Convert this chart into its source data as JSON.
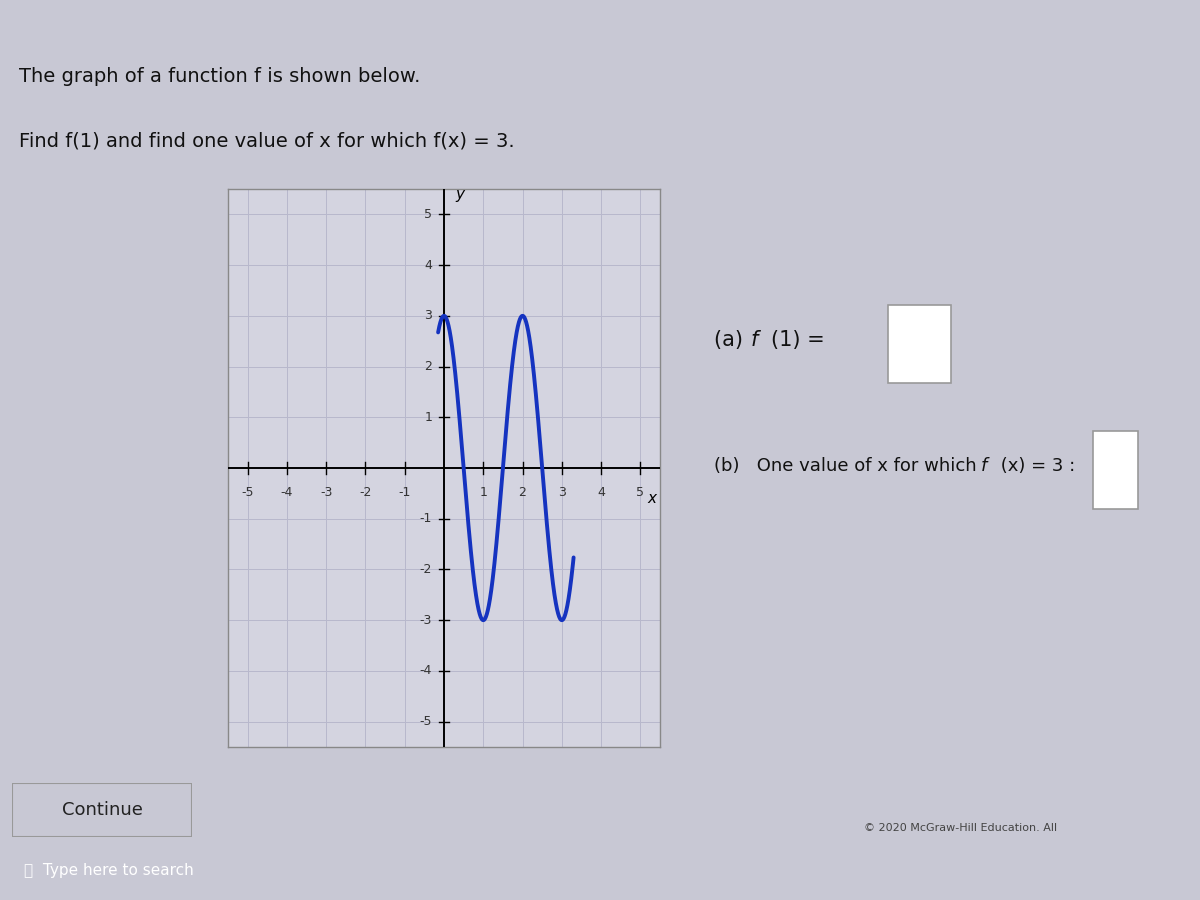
{
  "title_line1": "The graph of a function f is shown below.",
  "title_line2": "Find f(1) and find one value of x for which f(x) = 3.",
  "question_a_prefix": "(a)  ",
  "question_a_func": "f",
  "question_a_suffix": "(1) = ",
  "question_b": "(b)   One value of x for which f (x) = 3 : ",
  "xlim": [
    -5.5,
    5.5
  ],
  "ylim": [
    -5.5,
    5.5
  ],
  "xticks": [
    -5,
    -4,
    -3,
    -2,
    -1,
    1,
    2,
    3,
    4,
    5
  ],
  "yticks": [
    -5,
    -4,
    -3,
    -2,
    -1,
    1,
    2,
    3,
    4,
    5
  ],
  "curve_color": "#1533c0",
  "curve_linewidth": 2.8,
  "grid_color": "#b8b8cc",
  "grid_linewidth": 0.7,
  "bg_outer": "#c8c8d4",
  "bg_plot": "#d4d4e0",
  "bg_white": "#e8e8f0",
  "box_border": "#999999",
  "text_color": "#111111",
  "x_label": "x",
  "y_label": "y",
  "curve_x_start": -0.08,
  "curve_x_end": 3.5,
  "curve_amplitude": 3.0,
  "curve_period": 2.0
}
